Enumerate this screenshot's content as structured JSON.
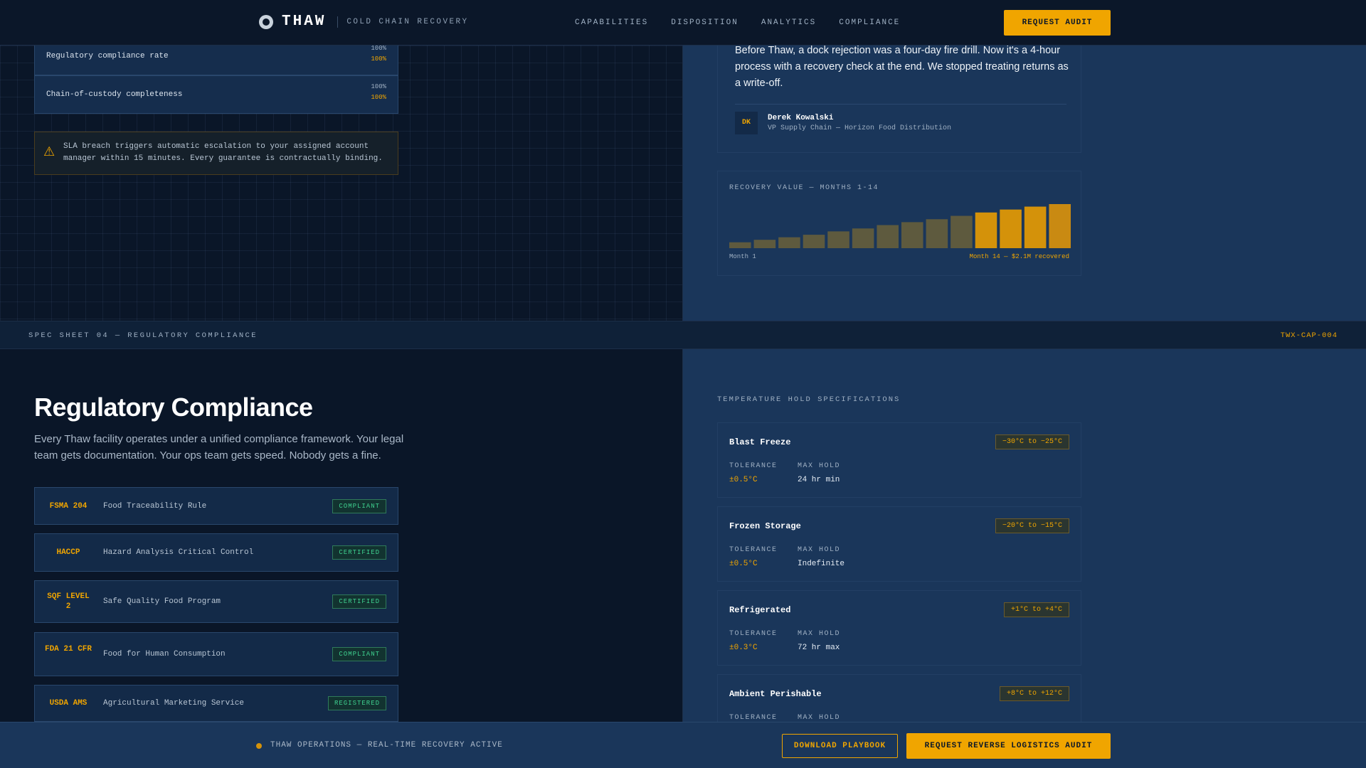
{
  "nav": {
    "brand": "THAW",
    "tagline": "COLD CHAIN RECOVERY",
    "links": [
      "CAPABILITIES",
      "DISPOSITION",
      "ANALYTICS",
      "COMPLIANCE"
    ],
    "cta": "REQUEST AUDIT"
  },
  "metrics": [
    {
      "label": "Regulatory compliance rate",
      "target": "100%",
      "actual": "100%"
    },
    {
      "label": "Chain-of-custody completeness",
      "target": "100%",
      "actual": "100%"
    }
  ],
  "sla": {
    "icon": "warning-icon",
    "text": "SLA breach triggers automatic escalation to your assigned account manager within 15 minutes. Every guarantee is contractually binding."
  },
  "testimonial": {
    "quote": "Before Thaw, a dock rejection was a four-day fire drill. Now it's a 4-hour process with a recovery check at the end. We stopped treating returns as a write-off.",
    "initials": "DK",
    "name": "Derek Kowalski",
    "role": "VP Supply Chain — Horizon Food Distribution"
  },
  "chart_data": {
    "type": "bar",
    "title": "RECOVERY VALUE — MONTHS 1-14",
    "categories": [
      "1",
      "2",
      "3",
      "4",
      "5",
      "6",
      "7",
      "8",
      "9",
      "10",
      "11",
      "12",
      "13",
      "14"
    ],
    "values": [
      0.28,
      0.4,
      0.52,
      0.64,
      0.8,
      0.94,
      1.1,
      1.24,
      1.38,
      1.54,
      1.7,
      1.84,
      1.98,
      2.1
    ],
    "highlight_from_index": 10,
    "start_label": "Month 1",
    "end_label": "Month 14 — $2.1M recovered",
    "ylim": [
      0,
      2.1
    ],
    "colors": {
      "base": "#5e5a3e",
      "highlight": "#d4920a",
      "peak": "#c98a12"
    }
  },
  "spec": {
    "left": "SPEC SHEET 04 — REGULATORY COMPLIANCE",
    "right": "TWX-CAP-004"
  },
  "compliance": {
    "title": "Regulatory Compliance",
    "subtitle": "Every Thaw facility operates under a unified compliance framework. Your legal team gets documentation. Your ops team gets speed. Nobody gets a fine.",
    "items": [
      {
        "code": "FSMA 204",
        "desc": "Food Traceability Rule",
        "status": "COMPLIANT"
      },
      {
        "code": "HACCP",
        "desc": "Hazard Analysis Critical Control",
        "status": "CERTIFIED"
      },
      {
        "code": "SQF LEVEL 2",
        "desc": "Safe Quality Food Program",
        "status": "CERTIFIED"
      },
      {
        "code": "FDA 21 CFR",
        "desc": "Food for Human Consumption",
        "status": "COMPLIANT"
      },
      {
        "code": "USDA AMS",
        "desc": "Agricultural Marketing Service",
        "status": "REGISTERED"
      }
    ]
  },
  "temperature": {
    "heading": "TEMPERATURE HOLD SPECIFICATIONS",
    "tolerance_label": "TOLERANCE",
    "hold_label": "MAX HOLD",
    "items": [
      {
        "name": "Blast Freeze",
        "range": "−30°C to −25°C",
        "tolerance": "±0.5°C",
        "hold": "24 hr min"
      },
      {
        "name": "Frozen Storage",
        "range": "−20°C to −15°C",
        "tolerance": "±0.5°C",
        "hold": "Indefinite"
      },
      {
        "name": "Refrigerated",
        "range": "+1°C to +4°C",
        "tolerance": "±0.3°C",
        "hold": "72 hr max"
      },
      {
        "name": "Ambient Perishable",
        "range": "+8°C to +12°C",
        "tolerance": "",
        "hold": ""
      }
    ]
  },
  "footer": {
    "status": "THAW OPERATIONS — REAL-TIME RECOVERY ACTIVE",
    "secondary_cta": "DOWNLOAD PLAYBOOK",
    "primary_cta": "REQUEST REVERSE LOGISTICS AUDIT"
  }
}
